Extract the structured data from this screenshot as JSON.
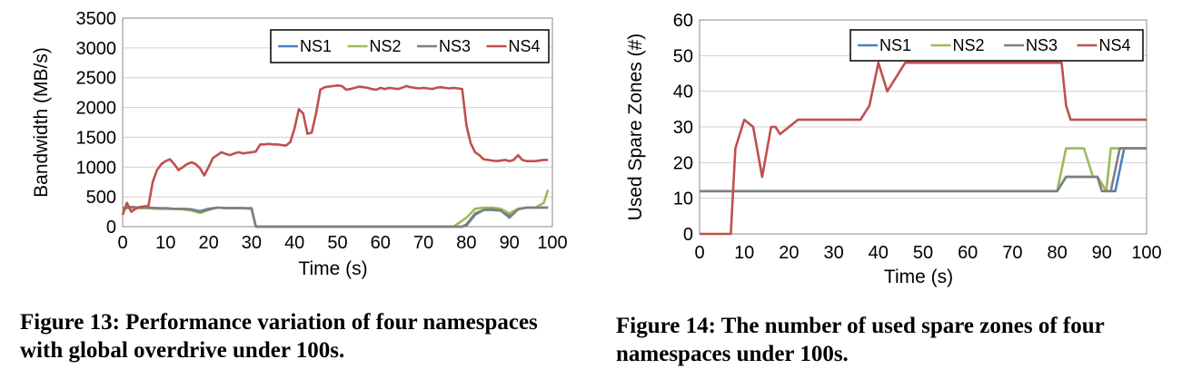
{
  "figures": [
    {
      "caption": "Figure 13: Performance variation of four namespaces with global overdrive under 100s."
    },
    {
      "caption": "Figure 14: The number of used spare zones of four namespaces under 100s."
    }
  ],
  "chart_data": [
    {
      "type": "line",
      "xlabel": "Time (s)",
      "ylabel": "Bandwidth (MB/s)",
      "xlim": [
        0,
        100
      ],
      "ylim": [
        0,
        3500
      ],
      "xticks": [
        0,
        10,
        20,
        30,
        40,
        50,
        60,
        70,
        80,
        90,
        100
      ],
      "yticks": [
        0,
        500,
        1000,
        1500,
        2000,
        2500,
        3000,
        3500
      ],
      "grid": true,
      "legend": "top-right",
      "series": [
        {
          "name": "NS1",
          "color": "#4f81bd",
          "x": [
            0,
            2,
            4,
            6,
            8,
            10,
            12,
            14,
            16,
            18,
            20,
            22,
            24,
            26,
            28,
            30,
            31,
            79,
            80,
            82,
            84,
            86,
            88,
            90,
            92,
            94,
            96,
            98,
            99
          ],
          "y": [
            300,
            330,
            320,
            320,
            310,
            300,
            300,
            300,
            290,
            260,
            300,
            320,
            310,
            310,
            310,
            300,
            0,
            0,
            20,
            200,
            280,
            280,
            270,
            180,
            300,
            320,
            320,
            320,
            320
          ]
        },
        {
          "name": "NS2",
          "color": "#9bbb59",
          "x": [
            0,
            2,
            4,
            6,
            8,
            10,
            12,
            14,
            16,
            18,
            20,
            22,
            24,
            26,
            28,
            30,
            31,
            77,
            80,
            82,
            84,
            86,
            88,
            90,
            92,
            94,
            96,
            98,
            99
          ],
          "y": [
            300,
            320,
            310,
            310,
            300,
            300,
            300,
            290,
            270,
            230,
            280,
            320,
            310,
            310,
            310,
            300,
            0,
            0,
            150,
            300,
            320,
            320,
            300,
            220,
            300,
            320,
            320,
            400,
            620
          ]
        },
        {
          "name": "NS3",
          "color": "#7f7f7f",
          "x": [
            0,
            2,
            4,
            6,
            8,
            10,
            12,
            14,
            16,
            18,
            20,
            22,
            24,
            26,
            28,
            30,
            31,
            79,
            80,
            82,
            84,
            86,
            88,
            90,
            92,
            94,
            96,
            98,
            99
          ],
          "y": [
            310,
            330,
            320,
            320,
            310,
            310,
            300,
            300,
            290,
            250,
            290,
            320,
            310,
            310,
            310,
            310,
            0,
            0,
            40,
            220,
            280,
            290,
            270,
            150,
            290,
            320,
            320,
            320,
            320
          ]
        },
        {
          "name": "NS4",
          "color": "#c0504d",
          "x": [
            0,
            1,
            2,
            3,
            4,
            6,
            7,
            8,
            9,
            10,
            11,
            12,
            13,
            14,
            15,
            16,
            17,
            18,
            19,
            20,
            21,
            22,
            23,
            24,
            25,
            26,
            27,
            28,
            29,
            30,
            31,
            32,
            33,
            34,
            35,
            36,
            37,
            38,
            39,
            40,
            41,
            42,
            43,
            44,
            45,
            46,
            47,
            48,
            49,
            50,
            51,
            52,
            53,
            54,
            55,
            56,
            57,
            58,
            59,
            60,
            61,
            62,
            63,
            64,
            65,
            66,
            67,
            68,
            69,
            70,
            71,
            72,
            73,
            74,
            75,
            76,
            77,
            78,
            79,
            80,
            81,
            82,
            83,
            84,
            85,
            86,
            87,
            88,
            89,
            90,
            91,
            92,
            93,
            94,
            95,
            96,
            97,
            98,
            99
          ],
          "y": [
            200,
            400,
            250,
            300,
            330,
            350,
            750,
            950,
            1050,
            1100,
            1130,
            1050,
            950,
            1000,
            1050,
            1080,
            1050,
            980,
            860,
            1000,
            1150,
            1200,
            1250,
            1220,
            1200,
            1230,
            1250,
            1230,
            1240,
            1250,
            1260,
            1380,
            1380,
            1390,
            1380,
            1380,
            1370,
            1360,
            1420,
            1650,
            1970,
            1900,
            1560,
            1580,
            1900,
            2300,
            2340,
            2350,
            2360,
            2370,
            2360,
            2300,
            2310,
            2330,
            2350,
            2340,
            2330,
            2310,
            2300,
            2330,
            2310,
            2330,
            2320,
            2310,
            2330,
            2360,
            2340,
            2330,
            2320,
            2330,
            2320,
            2310,
            2330,
            2340,
            2330,
            2320,
            2330,
            2320,
            2310,
            1700,
            1400,
            1250,
            1200,
            1130,
            1120,
            1110,
            1100,
            1110,
            1120,
            1100,
            1120,
            1200,
            1120,
            1100,
            1100,
            1100,
            1110,
            1120,
            1120
          ]
        }
      ]
    },
    {
      "type": "line",
      "xlabel": "Time (s)",
      "ylabel": "Used Spare Zones (#)",
      "xlim": [
        0,
        100
      ],
      "ylim": [
        0,
        60
      ],
      "xticks": [
        0,
        10,
        20,
        30,
        40,
        50,
        60,
        70,
        80,
        90,
        100
      ],
      "yticks": [
        0,
        10,
        20,
        30,
        40,
        50,
        60
      ],
      "grid": true,
      "legend": "top-right",
      "series": [
        {
          "name": "NS1",
          "color": "#4f81bd",
          "x": [
            0,
            80,
            82,
            86,
            89,
            91,
            93,
            95,
            100
          ],
          "y": [
            12,
            12,
            16,
            16,
            16,
            12,
            12,
            24,
            24
          ]
        },
        {
          "name": "NS2",
          "color": "#9bbb59",
          "x": [
            0,
            80,
            82,
            86,
            88,
            89,
            91,
            92,
            100
          ],
          "y": [
            12,
            12,
            24,
            24,
            16,
            16,
            12,
            24,
            24
          ]
        },
        {
          "name": "NS3",
          "color": "#7f7f7f",
          "x": [
            0,
            80,
            82,
            86,
            89,
            90,
            92,
            94,
            100
          ],
          "y": [
            12,
            12,
            16,
            16,
            16,
            12,
            12,
            24,
            24
          ]
        },
        {
          "name": "NS4",
          "color": "#c0504d",
          "x": [
            0,
            5,
            7,
            8,
            10,
            12,
            14,
            16,
            17,
            18,
            20,
            22,
            24,
            26,
            28,
            30,
            32,
            34,
            36,
            38,
            40,
            42,
            44,
            46,
            48,
            50,
            52,
            54,
            56,
            58,
            60,
            62,
            64,
            66,
            68,
            70,
            72,
            74,
            76,
            78,
            80,
            81,
            82,
            83,
            84,
            86,
            88,
            90,
            92,
            94,
            96,
            98,
            100
          ],
          "y": [
            0,
            0,
            0,
            24,
            32,
            30,
            16,
            30,
            30,
            28,
            30,
            32,
            32,
            32,
            32,
            32,
            32,
            32,
            32,
            36,
            48,
            40,
            44,
            48,
            48,
            48,
            48,
            48,
            48,
            48,
            48,
            48,
            48,
            48,
            48,
            48,
            48,
            48,
            48,
            48,
            48,
            48,
            36,
            32,
            32,
            32,
            32,
            32,
            32,
            32,
            32,
            32,
            32
          ]
        }
      ]
    }
  ]
}
